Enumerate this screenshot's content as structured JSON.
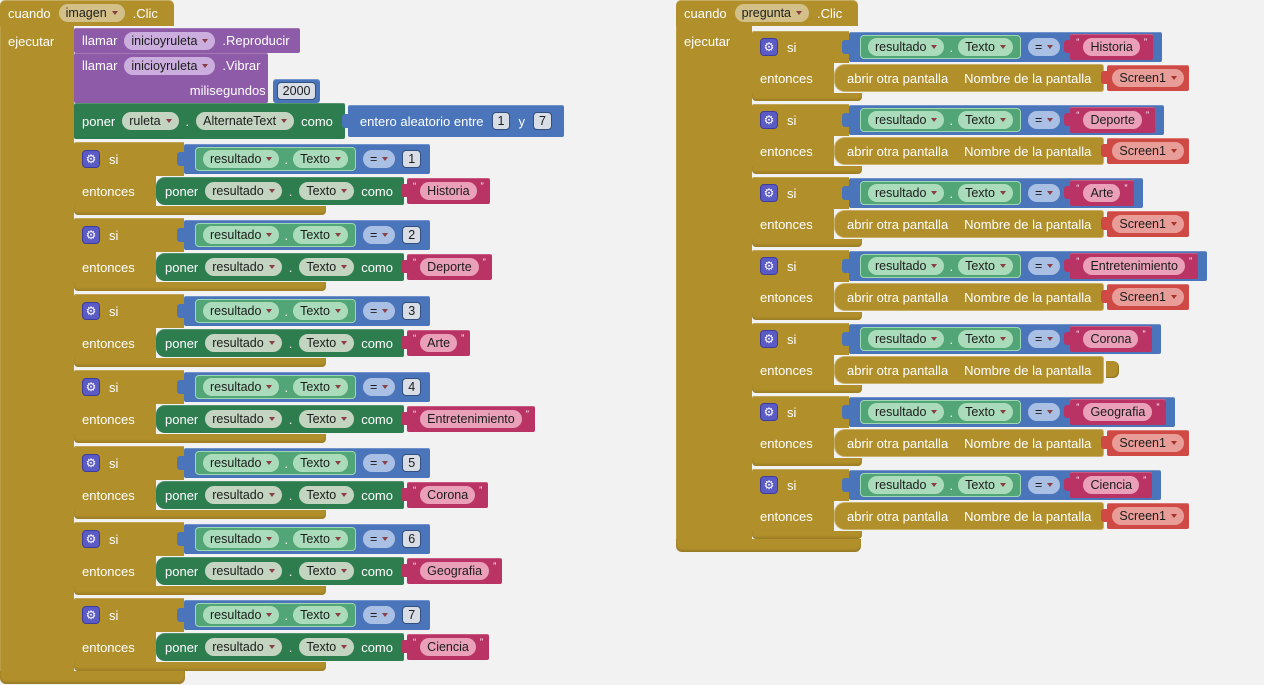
{
  "colors": {
    "background": "#f2f2f2",
    "event_gold": "#b1902b",
    "method_purple": "#8e5ba8",
    "setter_green": "#2e7d4f",
    "getter_green": "#52a576",
    "logic_blue": "#4a75bb",
    "text_magenta": "#ba3365",
    "screen_red": "#cf4a45",
    "gear_indigo": "#5b5bc5"
  },
  "labels": {
    "cuando": "cuando",
    "clic": ".Clic",
    "ejecutar": "ejecutar",
    "llamar": "llamar",
    "poner": "poner",
    "como": "como",
    "si": "si",
    "entonces": "entonces",
    "milisegundos": "milisegundos",
    "equals": "=",
    "random_label": "entero aleatorio entre",
    "y": "y",
    "abrir": "abrir otra pantalla",
    "nombre": "Nombre de la pantalla",
    "open_quote": "“",
    "close_quote": "”",
    "dot": ".",
    "gear": "⚙"
  },
  "getter": {
    "component": "resultado",
    "property": "Texto"
  },
  "left_stack": {
    "event_component": "imagen",
    "calls": [
      {
        "component": "inicioyruleta",
        "method": ".Reproducir"
      },
      {
        "component": "inicioyruleta",
        "method": ".Vibrar",
        "param": "milisegundos",
        "value": "2000"
      }
    ],
    "setter": {
      "component": "ruleta",
      "property": "AlternateText",
      "min": "1",
      "max": "7"
    },
    "cases": [
      {
        "value": "1",
        "text": "Historia"
      },
      {
        "value": "2",
        "text": "Deporte"
      },
      {
        "value": "3",
        "text": "Arte"
      },
      {
        "value": "4",
        "text": "Entretenimiento"
      },
      {
        "value": "5",
        "text": "Corona"
      },
      {
        "value": "6",
        "text": "Geografia"
      },
      {
        "value": "7",
        "text": "Ciencia"
      }
    ]
  },
  "right_stack": {
    "event_component": "pregunta",
    "cases": [
      {
        "text": "Historia",
        "screen": "Screen1"
      },
      {
        "text": "Deporte",
        "screen": "Screen1"
      },
      {
        "text": "Arte",
        "screen": "Screen1"
      },
      {
        "text": "Entretenimiento",
        "screen": "Screen1"
      },
      {
        "text": "Corona",
        "screen": ""
      },
      {
        "text": "Geografia",
        "screen": "Screen1"
      },
      {
        "text": "Ciencia",
        "screen": "Screen1"
      }
    ]
  }
}
